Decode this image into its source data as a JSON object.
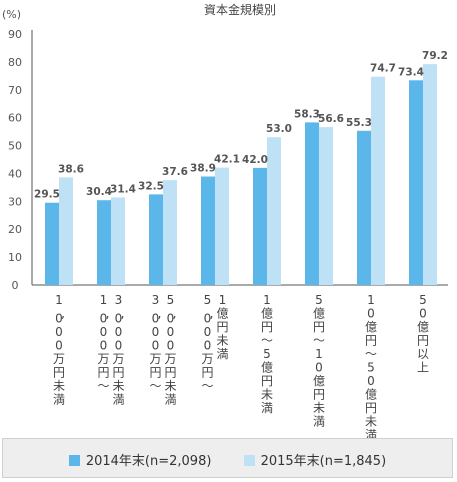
{
  "chart_data": {
    "type": "bar",
    "title": "資本金規模別",
    "ylabel": "(%)",
    "xlabel": "",
    "ylim": [
      0,
      90
    ],
    "yticks": [
      0,
      10,
      20,
      30,
      40,
      50,
      60,
      70,
      80,
      90
    ],
    "grid": false,
    "legend_position": "bottom",
    "categories": [
      [
        "1,000万円未満"
      ],
      [
        "1,000万円～",
        "3,000万円未満"
      ],
      [
        "3,000万円～",
        "5,000万円未満"
      ],
      [
        "5,000万円～",
        "1億円未満"
      ],
      [
        "1億円～5億円未満"
      ],
      [
        "5億円～10億円未満"
      ],
      [
        "10億円～50億円未満"
      ],
      [
        "50億円以上"
      ]
    ],
    "series": [
      {
        "name": "2014年末(n=2,098)",
        "color": "#5bb6ea",
        "values": [
          29.5,
          30.4,
          32.5,
          38.9,
          42.0,
          58.3,
          55.3,
          73.4
        ]
      },
      {
        "name": "2015年末(n=1,845)",
        "color": "#bfe1f6",
        "values": [
          38.6,
          31.4,
          37.6,
          42.1,
          53.0,
          56.6,
          74.7,
          79.2
        ]
      }
    ]
  }
}
